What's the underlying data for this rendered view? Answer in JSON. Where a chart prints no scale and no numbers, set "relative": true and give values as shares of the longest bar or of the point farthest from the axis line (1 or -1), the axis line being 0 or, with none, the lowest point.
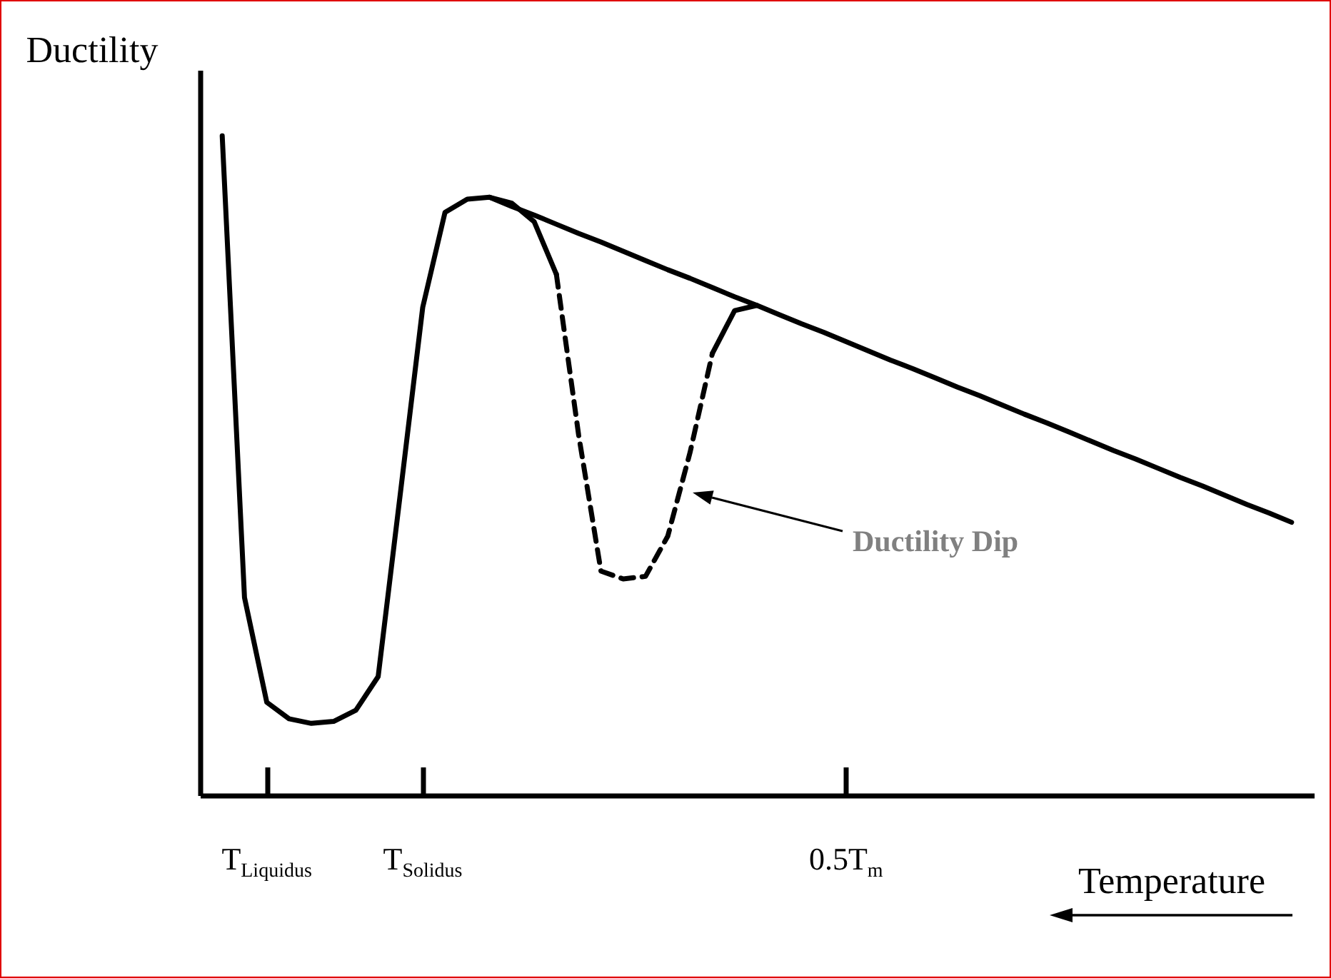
{
  "chart_data": {
    "type": "line",
    "relative": true,
    "ylabel": "Ductility",
    "xlabel": "Temperature",
    "categories": [
      null,
      null,
      null,
      "T$_{Liquidus}$",
      null,
      null,
      null,
      null,
      null,
      null,
      "T$_{Solidus}$",
      null,
      null,
      null,
      null,
      null,
      null,
      null,
      null,
      null,
      null,
      null,
      null,
      null,
      null,
      null,
      null,
      null,
      null,
      "0.5T$_{m}$",
      null,
      null,
      null,
      null,
      null,
      null,
      null,
      null,
      null,
      null,
      null,
      null,
      null,
      null,
      null,
      null,
      null,
      null,
      null,
      null,
      null
    ],
    "tick_labels": "x",
    "grid": false,
    "series": [
      {
        "color": "#000000",
        "line_style": "solid",
        "values": [
          null,
          1.0,
          0.3,
          0.141,
          0.116,
          0.109,
          0.112,
          0.129,
          0.18,
          0.459,
          0.74,
          0.884,
          0.904,
          0.907,
          0.893,
          0.88,
          0.866,
          0.852,
          0.839,
          0.825,
          0.811,
          0.797,
          0.784,
          0.77,
          0.756,
          0.743,
          0.729,
          0.715,
          0.702,
          0.688,
          0.674,
          0.66,
          0.647,
          0.633,
          0.619,
          0.606,
          0.592,
          0.578,
          0.565,
          0.551,
          0.537,
          0.523,
          0.51,
          0.496,
          0.482,
          0.469,
          0.455,
          0.441,
          0.428,
          0.414,
          null
        ]
      },
      {
        "color": "#000000",
        "line_style": "solid",
        "values": [
          null,
          null,
          null,
          null,
          null,
          null,
          null,
          null,
          null,
          null,
          null,
          null,
          null,
          0.907,
          0.898,
          0.87,
          0.79,
          null,
          null,
          null,
          null,
          null,
          null,
          null,
          null,
          null,
          null,
          null,
          null,
          null,
          null,
          null,
          null,
          null,
          null,
          null,
          null,
          null,
          null,
          null,
          null,
          null,
          null,
          null,
          null,
          null,
          null,
          null,
          null,
          null,
          null
        ]
      },
      {
        "color": "#000000",
        "line_style": "dashed",
        "values": [
          null,
          null,
          null,
          null,
          null,
          null,
          null,
          null,
          null,
          null,
          null,
          null,
          null,
          null,
          null,
          null,
          0.79,
          0.546,
          0.34,
          0.328,
          0.332,
          0.393,
          0.52,
          0.67,
          null,
          null,
          null,
          null,
          null,
          null,
          null,
          null,
          null,
          null,
          null,
          null,
          null,
          null,
          null,
          null,
          null,
          null,
          null,
          null,
          null,
          null,
          null,
          null,
          null,
          null,
          null
        ]
      },
      {
        "color": "#000000",
        "line_style": "solid",
        "values": [
          null,
          null,
          null,
          null,
          null,
          null,
          null,
          null,
          null,
          null,
          null,
          null,
          null,
          null,
          null,
          null,
          null,
          null,
          null,
          null,
          null,
          null,
          null,
          0.67,
          0.735,
          0.743,
          null,
          null,
          null,
          null,
          null,
          null,
          null,
          null,
          null,
          null,
          null,
          null,
          null,
          null,
          null,
          null,
          null,
          null,
          null,
          null,
          null,
          null,
          null,
          null,
          null
        ]
      }
    ],
    "annotations": [
      "Ductility Dip"
    ]
  }
}
